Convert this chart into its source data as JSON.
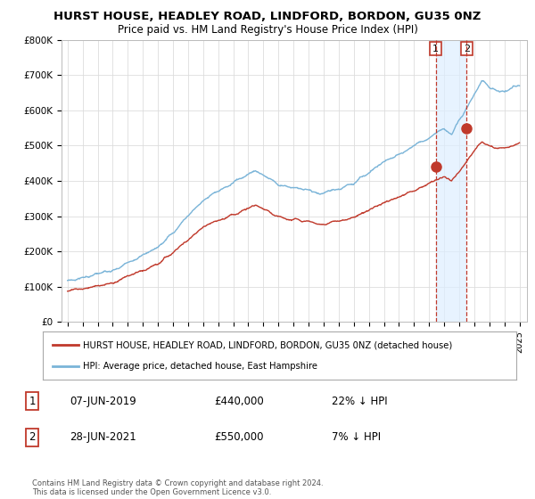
{
  "title": "HURST HOUSE, HEADLEY ROAD, LINDFORD, BORDON, GU35 0NZ",
  "subtitle": "Price paid vs. HM Land Registry's House Price Index (HPI)",
  "ylim": [
    0,
    800000
  ],
  "yticks": [
    0,
    100000,
    200000,
    300000,
    400000,
    500000,
    600000,
    700000,
    800000
  ],
  "ytick_labels": [
    "£0",
    "£100K",
    "£200K",
    "£300K",
    "£400K",
    "£500K",
    "£600K",
    "£700K",
    "£800K"
  ],
  "xlim_start": 1994.6,
  "xlim_end": 2025.5,
  "hpi_color": "#7ab4d8",
  "price_color": "#c0392b",
  "vline_color": "#c0392b",
  "shade_color": "#ddeeff",
  "background_color": "#ffffff",
  "grid_color": "#dddddd",
  "legend_label_red": "HURST HOUSE, HEADLEY ROAD, LINDFORD, BORDON, GU35 0NZ (detached house)",
  "legend_label_blue": "HPI: Average price, detached house, East Hampshire",
  "transaction1_year": 2019.44,
  "transaction1_price": 440000,
  "transaction2_year": 2021.49,
  "transaction2_price": 550000,
  "transactions": [
    {
      "num": "1",
      "date": "07-JUN-2019",
      "price": "£440,000",
      "hpi": "22% ↓ HPI",
      "year": 2019.44
    },
    {
      "num": "2",
      "date": "28-JUN-2021",
      "price": "£550,000",
      "hpi": "7% ↓ HPI",
      "year": 2021.49
    }
  ],
  "footer": "Contains HM Land Registry data © Crown copyright and database right 2024.\nThis data is licensed under the Open Government Licence v3.0."
}
